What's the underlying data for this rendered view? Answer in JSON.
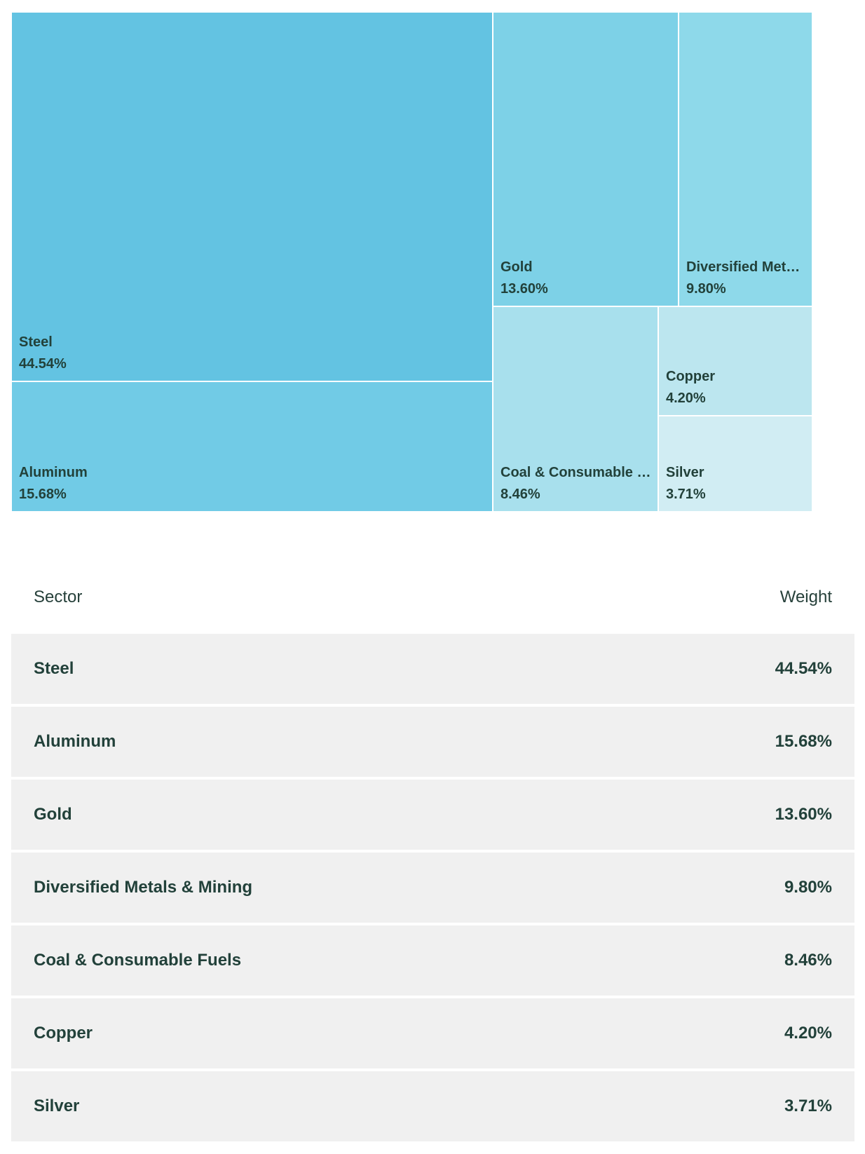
{
  "chart_data": {
    "type": "treemap",
    "items": [
      {
        "label": "Steel",
        "display_label": "Steel",
        "value": 44.54,
        "value_text": "44.54%",
        "color": "#63c3e2"
      },
      {
        "label": "Aluminum",
        "display_label": "Aluminum",
        "value": 15.68,
        "value_text": "15.68%",
        "color": "#71cbe6"
      },
      {
        "label": "Gold",
        "display_label": "Gold",
        "value": 13.6,
        "value_text": "13.60%",
        "color": "#7dd1e7"
      },
      {
        "label": "Diversified Metals & Mining",
        "display_label": "Diversified Metal...",
        "value": 9.8,
        "value_text": "9.80%",
        "color": "#8ed9ea"
      },
      {
        "label": "Coal & Consumable Fuels",
        "display_label": "Coal & Consumable F...",
        "value": 8.46,
        "value_text": "8.46%",
        "color": "#a8e0ed"
      },
      {
        "label": "Copper",
        "display_label": "Copper",
        "value": 4.2,
        "value_text": "4.20%",
        "color": "#bce6ef"
      },
      {
        "label": "Silver",
        "display_label": "Silver",
        "value": 3.71,
        "value_text": "3.71%",
        "color": "#d1edf3"
      }
    ]
  },
  "table": {
    "header": {
      "sector": "Sector",
      "weight": "Weight"
    },
    "rows": [
      {
        "sector": "Steel",
        "weight": "44.54%"
      },
      {
        "sector": "Aluminum",
        "weight": "15.68%"
      },
      {
        "sector": "Gold",
        "weight": "13.60%"
      },
      {
        "sector": "Diversified Metals & Mining",
        "weight": "9.80%"
      },
      {
        "sector": "Coal & Consumable Fuels",
        "weight": "8.46%"
      },
      {
        "sector": "Copper",
        "weight": "4.20%"
      },
      {
        "sector": "Silver",
        "weight": "3.71%"
      }
    ]
  }
}
